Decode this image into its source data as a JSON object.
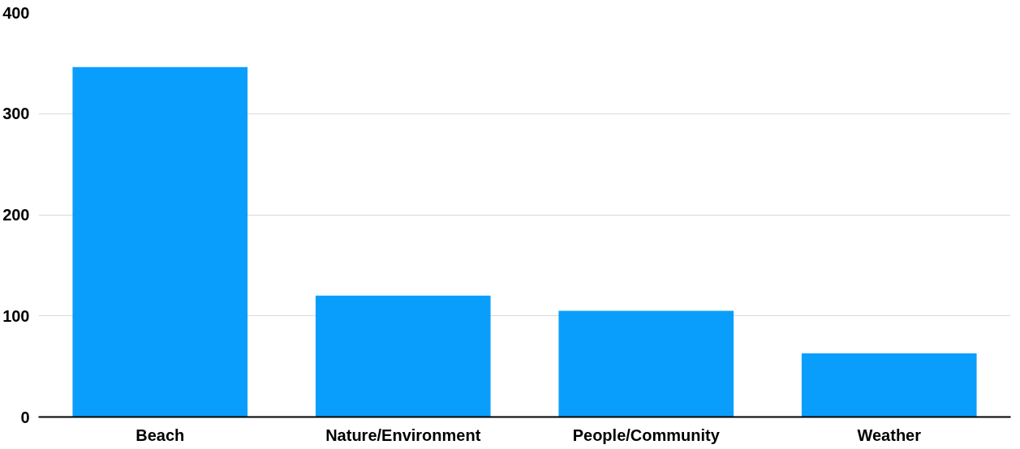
{
  "chart_data": {
    "type": "bar",
    "categories": [
      "Beach",
      "Nature/Environment",
      "People/Community",
      "Weather"
    ],
    "values": [
      346,
      120,
      105,
      63
    ],
    "color": "#0a9efc",
    "ylim": [
      0,
      400
    ],
    "yticks": [
      0,
      100,
      200,
      300,
      400
    ],
    "grid": "y"
  }
}
